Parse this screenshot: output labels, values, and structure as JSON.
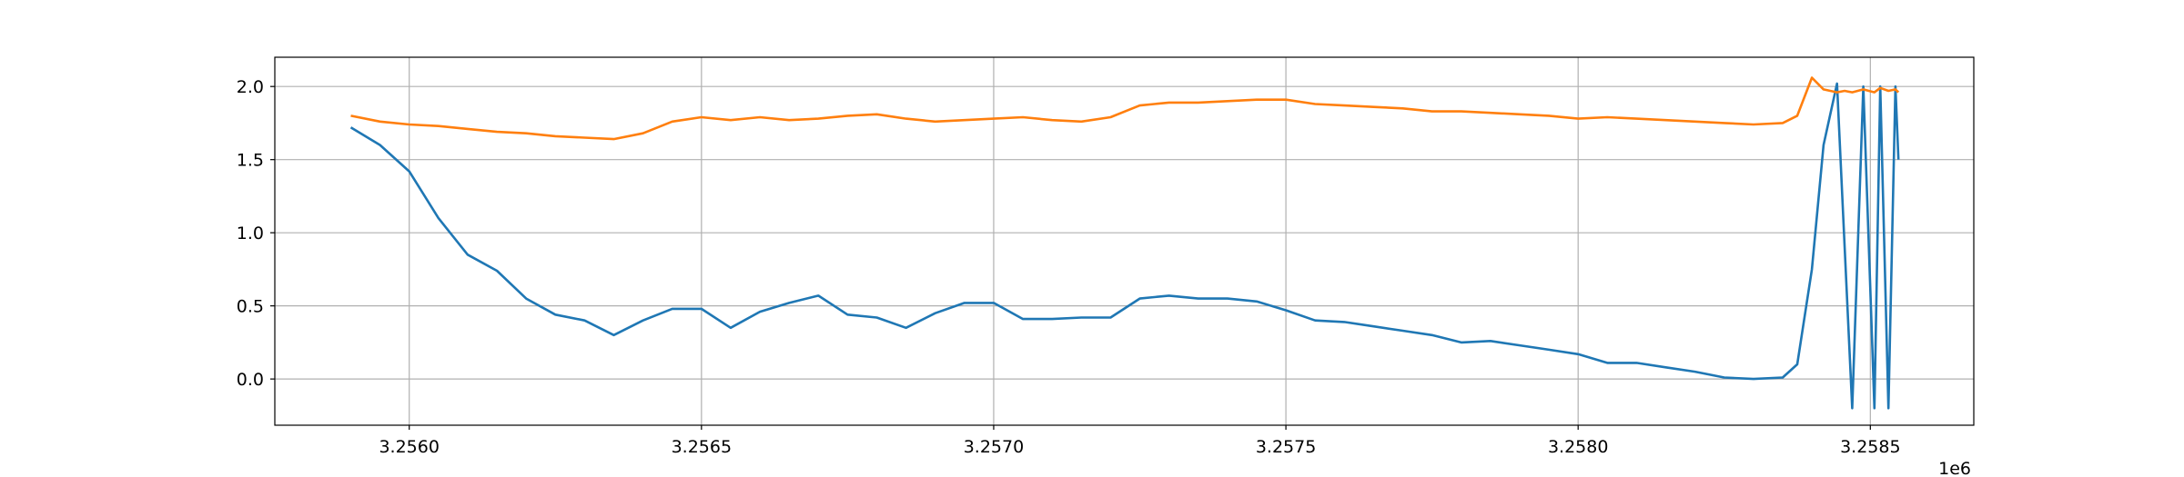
{
  "chart_data": {
    "type": "line",
    "offset_label": "1e6",
    "x": [
      3255900,
      3255950,
      3256000,
      3256050,
      3256100,
      3256150,
      3256200,
      3256250,
      3256300,
      3256350,
      3256400,
      3256450,
      3256500,
      3256550,
      3256600,
      3256650,
      3256700,
      3256750,
      3256800,
      3256850,
      3256900,
      3256950,
      3257000,
      3257050,
      3257100,
      3257150,
      3257200,
      3257250,
      3257300,
      3257350,
      3257400,
      3257450,
      3257500,
      3257550,
      3257600,
      3257650,
      3257700,
      3257750,
      3257800,
      3257850,
      3257900,
      3257950,
      3258000,
      3258050,
      3258100,
      3258150,
      3258200,
      3258250,
      3258300,
      3258350,
      3258375,
      3258400,
      3258420,
      3258443,
      3258456,
      3258469,
      3258488,
      3258507,
      3258517,
      3258531,
      3258543,
      3258548
    ],
    "series": [
      {
        "color": "#1f77b4",
        "values": [
          1.72,
          1.6,
          1.42,
          1.1,
          0.85,
          0.74,
          0.55,
          0.44,
          0.4,
          0.3,
          0.4,
          0.48,
          0.48,
          0.35,
          0.46,
          0.52,
          0.57,
          0.44,
          0.42,
          0.35,
          0.45,
          0.52,
          0.52,
          0.41,
          0.41,
          0.42,
          0.42,
          0.55,
          0.57,
          0.55,
          0.55,
          0.53,
          0.47,
          0.4,
          0.39,
          0.36,
          0.33,
          0.3,
          0.25,
          0.26,
          0.23,
          0.2,
          0.17,
          0.11,
          0.11,
          0.08,
          0.05,
          0.01,
          0.0,
          0.01,
          0.1,
          0.75,
          1.6,
          2.02,
          0.9,
          -0.2,
          2.0,
          -0.2,
          2.0,
          -0.2,
          2.0,
          1.5
        ]
      },
      {
        "color": "#ff7f0e",
        "values": [
          1.8,
          1.76,
          1.74,
          1.73,
          1.71,
          1.69,
          1.68,
          1.66,
          1.65,
          1.64,
          1.68,
          1.76,
          1.79,
          1.77,
          1.79,
          1.77,
          1.78,
          1.8,
          1.81,
          1.78,
          1.76,
          1.77,
          1.78,
          1.79,
          1.77,
          1.76,
          1.79,
          1.87,
          1.89,
          1.89,
          1.9,
          1.91,
          1.91,
          1.88,
          1.87,
          1.86,
          1.85,
          1.83,
          1.83,
          1.82,
          1.81,
          1.8,
          1.78,
          1.79,
          1.78,
          1.77,
          1.76,
          1.75,
          1.74,
          1.75,
          1.8,
          2.06,
          1.98,
          1.96,
          1.97,
          1.96,
          1.98,
          1.96,
          1.99,
          1.97,
          1.98,
          1.96
        ]
      }
    ],
    "xlim": [
      3255770,
      3258677
    ],
    "ylim": [
      -0.316,
      2.2
    ],
    "xticks": [
      {
        "value": 3256000,
        "label": "3.2560"
      },
      {
        "value": 3256500,
        "label": "3.2565"
      },
      {
        "value": 3257000,
        "label": "3.2570"
      },
      {
        "value": 3257500,
        "label": "3.2575"
      },
      {
        "value": 3258000,
        "label": "3.2580"
      },
      {
        "value": 3258500,
        "label": "3.2585"
      }
    ],
    "yticks": [
      {
        "value": 0,
        "label": "0.0"
      },
      {
        "value": 0.5,
        "label": "0.5"
      },
      {
        "value": 1,
        "label": "1.0"
      },
      {
        "value": 1.5,
        "label": "1.5"
      },
      {
        "value": 2,
        "label": "2.0"
      }
    ],
    "grid": true
  }
}
